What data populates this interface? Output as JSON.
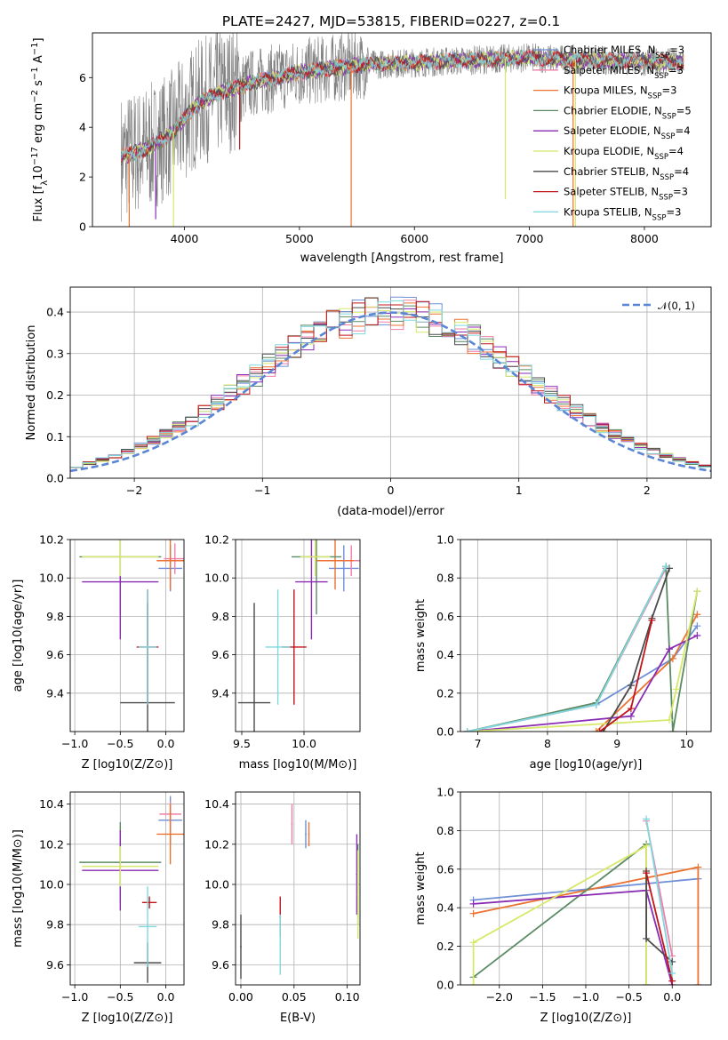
{
  "figure": {
    "title": "PLATE=2427, MJD=53815, FIBERID=0227, z=0.1"
  },
  "colors": {
    "Chabrier MILES": "#6f8fd6",
    "Salpeter MILES": "#f07ea8",
    "Kroupa MILES": "#ec7230",
    "Chabrier ELODIE": "#5c8a64",
    "Salpeter ELODIE": "#8a2bb4",
    "Kroupa ELODIE": "#d7e86a",
    "Chabrier STELIB": "#4a4a4a",
    "Salpeter STELIB": "#c0151a",
    "Kroupa STELIB": "#7fd8df",
    "normal_curve": "#5b86d6",
    "data_spectrum": "#808080",
    "grid": "#b0b0b0"
  },
  "chart_data": [
    {
      "type": "line",
      "name": "spectrum",
      "xlabel": "wavelength [Angstrom, rest frame]",
      "ylabel": "Flux [f_λ10^-17 erg cm^-2 s^-1 A^-1]",
      "xlim": [
        3200,
        8580
      ],
      "ylim": [
        0,
        7.8
      ],
      "xticks": [
        4000,
        5000,
        6000,
        7000,
        8000
      ],
      "yticks": [
        0,
        2,
        4,
        6
      ],
      "grid": false,
      "legend_position": "top-right",
      "spectrum_range": [
        3450,
        8340
      ],
      "continuum_knots": [
        [
          3450,
          2.8
        ],
        [
          3700,
          3.2
        ],
        [
          3900,
          3.8
        ],
        [
          4100,
          4.9
        ],
        [
          4300,
          5.4
        ],
        [
          4600,
          5.8
        ],
        [
          5000,
          6.2
        ],
        [
          5500,
          6.5
        ],
        [
          6000,
          6.6
        ],
        [
          6500,
          6.7
        ],
        [
          7000,
          6.8
        ],
        [
          7500,
          6.7
        ],
        [
          8000,
          6.65
        ],
        [
          8340,
          6.6
        ]
      ],
      "model_dips": [
        {
          "series": "Kroupa MILES",
          "x": 3520,
          "y_min": 0.0
        },
        {
          "series": "Salpeter ELODIE",
          "x": 3750,
          "y_min": 0.3
        },
        {
          "series": "Kroupa ELODIE",
          "x": 3905,
          "y_min": 0.0
        },
        {
          "series": "Salpeter STELIB",
          "x": 4480,
          "y_min": 3.1
        },
        {
          "series": "Kroupa MILES",
          "x": 5450,
          "y_min": 0.0
        },
        {
          "series": "Kroupa ELODIE",
          "x": 6790,
          "y_min": 1.1
        },
        {
          "series": "Kroupa MILES",
          "x": 7380,
          "y_min": 0.0
        },
        {
          "series": "Kroupa ELODIE",
          "x": 7400,
          "y_min": 0.0
        }
      ],
      "series": [
        {
          "name": "Chabrier MILES, N_SSP=3",
          "text": "Chabrier MILES, N",
          "sub": "SSP",
          "tail": "=3"
        },
        {
          "name": "Salpeter MILES, N_SSP=3",
          "text": "Salpeter MILES, N",
          "sub": "SSP",
          "tail": "=3"
        },
        {
          "name": "Kroupa MILES, N_SSP=3",
          "text": "Kroupa MILES, N",
          "sub": "SSP",
          "tail": "=3"
        },
        {
          "name": "Chabrier ELODIE, N_SSP=5",
          "text": "Chabrier ELODIE, N",
          "sub": "SSP",
          "tail": "=5"
        },
        {
          "name": "Salpeter ELODIE, N_SSP=4",
          "text": "Salpeter ELODIE, N",
          "sub": "SSP",
          "tail": "=4"
        },
        {
          "name": "Kroupa ELODIE, N_SSP=4",
          "text": "Kroupa ELODIE, N",
          "sub": "SSP",
          "tail": "=4"
        },
        {
          "name": "Chabrier STELIB, N_SSP=4",
          "text": "Chabrier STELIB, N",
          "sub": "SSP",
          "tail": "=4"
        },
        {
          "name": "Salpeter STELIB, N_SSP=3",
          "text": "Salpeter STELIB, N",
          "sub": "SSP",
          "tail": "=3"
        },
        {
          "name": "Kroupa STELIB, N_SSP=3",
          "text": "Kroupa STELIB, N",
          "sub": "SSP",
          "tail": "=3"
        }
      ]
    },
    {
      "type": "line",
      "name": "residuals",
      "xlabel": "(data-model)/error",
      "ylabel": "Normed distribution",
      "xlim": [
        -2.5,
        2.5
      ],
      "ylim": [
        0,
        0.46
      ],
      "xticks": [
        -2,
        -1,
        0,
        1,
        2
      ],
      "yticks": [
        0.0,
        0.1,
        0.2,
        0.3,
        0.4
      ],
      "grid": true,
      "legend_position": "top-right",
      "legend": "𝒩(0, 1)",
      "normal_curve": {
        "mean": 0,
        "sigma": 1
      },
      "bin_width": 0.1,
      "bin_edges": [
        -2.5,
        2.5
      ]
    },
    {
      "type": "scatter",
      "name": "age-vs-Z",
      "xlabel": "Z [log10(Z/Z⊙)]",
      "ylabel": "age [log10(age/yr)]",
      "xlim": [
        -1.05,
        0.2
      ],
      "ylim": [
        9.2,
        10.2
      ],
      "xticks": [
        -1.0,
        -0.5,
        0.0
      ],
      "yticks": [
        9.4,
        9.6,
        9.8,
        10.0,
        10.2
      ],
      "grid": true,
      "points": [
        {
          "series": "Chabrier MILES",
          "x": 0.05,
          "xerr": 0.13,
          "y": 10.05,
          "yerr": 0.12
        },
        {
          "series": "Salpeter MILES",
          "x": 0.1,
          "xerr": 0.12,
          "y": 10.1,
          "yerr": 0.08
        },
        {
          "series": "Kroupa MILES",
          "x": 0.05,
          "xerr": 0.15,
          "y": 10.09,
          "yerr": 0.15
        },
        {
          "series": "Chabrier ELODIE",
          "x": -0.5,
          "xerr": 0.45,
          "y": 10.11,
          "yerr": 0.3
        },
        {
          "series": "Salpeter ELODIE",
          "x": -0.5,
          "xerr": 0.42,
          "y": 9.98,
          "yerr": 0.3
        },
        {
          "series": "Kroupa ELODIE",
          "x": -0.5,
          "xerr": 0.42,
          "y": 10.11,
          "yerr": 0.1
        },
        {
          "series": "Chabrier STELIB",
          "x": -0.2,
          "xerr": 0.3,
          "y": 9.35,
          "yerr": 0.52
        },
        {
          "series": "Salpeter STELIB",
          "x": -0.2,
          "xerr": 0.12,
          "y": 9.64,
          "yerr": 0.3
        },
        {
          "series": "Kroupa STELIB",
          "x": -0.2,
          "xerr": 0.1,
          "y": 9.64,
          "yerr": 0.3
        }
      ]
    },
    {
      "type": "scatter",
      "name": "age-vs-mass",
      "xlabel": "mass [log10(M/M⊙)]",
      "ylabel": "",
      "xlim": [
        9.45,
        10.45
      ],
      "ylim": [
        9.2,
        10.2
      ],
      "xticks": [
        9.5,
        10.0
      ],
      "yticks": [
        9.4,
        9.6,
        9.8,
        10.0,
        10.2
      ],
      "grid": true,
      "points": [
        {
          "series": "Chabrier MILES",
          "x": 10.32,
          "xerr": 0.12,
          "y": 10.05,
          "yerr": 0.12
        },
        {
          "series": "Salpeter MILES",
          "x": 10.38,
          "xerr": 0.15,
          "y": 10.09,
          "yerr": 0.08
        },
        {
          "series": "Kroupa MILES",
          "x": 10.25,
          "xerr": 0.15,
          "y": 10.09,
          "yerr": 0.15
        },
        {
          "series": "Chabrier ELODIE",
          "x": 10.1,
          "xerr": 0.2,
          "y": 10.11,
          "yerr": 0.3
        },
        {
          "series": "Salpeter ELODIE",
          "x": 10.06,
          "xerr": 0.13,
          "y": 9.98,
          "yerr": 0.3
        },
        {
          "series": "Kroupa ELODIE",
          "x": 10.09,
          "xerr": 0.12,
          "y": 10.11,
          "yerr": 0.1
        },
        {
          "series": "Chabrier STELIB",
          "x": 9.6,
          "xerr": 0.13,
          "y": 9.35,
          "yerr": 0.52
        },
        {
          "series": "Salpeter STELIB",
          "x": 9.92,
          "xerr": 0.1,
          "y": 9.64,
          "yerr": 0.3
        },
        {
          "series": "Kroupa STELIB",
          "x": 9.79,
          "xerr": 0.1,
          "y": 9.64,
          "yerr": 0.3
        }
      ]
    },
    {
      "type": "line",
      "name": "weight-vs-age",
      "xlabel": "age [log10(age/yr)]",
      "ylabel": "mass weight",
      "xlim": [
        6.75,
        10.35
      ],
      "ylim": [
        0,
        1.0
      ],
      "xticks": [
        7,
        8,
        9,
        10
      ],
      "yticks": [
        0.0,
        0.2,
        0.4,
        0.6,
        0.8,
        1.0
      ],
      "grid": true,
      "series": [
        {
          "name": "Chabrier MILES",
          "x": [
            6.85,
            8.7,
            9.8,
            10.15
          ],
          "y": [
            0.0,
            0.14,
            0.38,
            0.55
          ]
        },
        {
          "name": "Salpeter MILES",
          "x": [
            6.85,
            8.7,
            9.7
          ],
          "y": [
            0.0,
            0.14,
            0.85
          ]
        },
        {
          "name": "Kroupa MILES",
          "x": [
            8.7,
            9.8,
            10.15
          ],
          "y": [
            0.0,
            0.38,
            0.61
          ]
        },
        {
          "name": "Chabrier ELODIE",
          "x": [
            6.85,
            8.7,
            9.7,
            9.8,
            10.15
          ],
          "y": [
            0.0,
            0.15,
            0.86,
            0.0,
            0.73
          ]
        },
        {
          "name": "Salpeter ELODIE",
          "x": [
            6.85,
            9.2,
            9.75,
            10.15
          ],
          "y": [
            0.0,
            0.08,
            0.43,
            0.5
          ]
        },
        {
          "name": "Kroupa ELODIE",
          "x": [
            6.85,
            9.75,
            9.85,
            10.15
          ],
          "y": [
            0.0,
            0.06,
            0.22,
            0.73
          ]
        },
        {
          "name": "Chabrier STELIB",
          "x": [
            8.8,
            9.2,
            9.5,
            9.75
          ],
          "y": [
            0.0,
            0.24,
            0.59,
            0.85
          ]
        },
        {
          "name": "Salpeter STELIB",
          "x": [
            8.75,
            9.2,
            9.5
          ],
          "y": [
            0.0,
            0.12,
            0.58
          ]
        },
        {
          "name": "Kroupa STELIB",
          "x": [
            6.85,
            8.7,
            9.7
          ],
          "y": [
            0.0,
            0.14,
            0.86
          ]
        }
      ]
    },
    {
      "type": "scatter",
      "name": "mass-vs-Z",
      "xlabel": "Z [log10(Z/Z⊙)]",
      "ylabel": "mass [log10(M/M⊙)]",
      "xlim": [
        -1.05,
        0.2
      ],
      "ylim": [
        9.5,
        10.46
      ],
      "xticks": [
        -1.0,
        -0.5,
        0.0
      ],
      "yticks": [
        9.6,
        9.8,
        10.0,
        10.2,
        10.4
      ],
      "grid": true,
      "points": [
        {
          "series": "Chabrier MILES",
          "x": 0.05,
          "xerr": 0.13,
          "y": 10.32,
          "yerr": 0.12
        },
        {
          "series": "Salpeter MILES",
          "x": 0.05,
          "xerr": 0.12,
          "y": 10.35,
          "yerr": 0.06
        },
        {
          "series": "Kroupa MILES",
          "x": 0.05,
          "xerr": 0.15,
          "y": 10.25,
          "yerr": 0.15
        },
        {
          "series": "Chabrier ELODIE",
          "x": -0.5,
          "xerr": 0.45,
          "y": 10.11,
          "yerr": 0.2
        },
        {
          "series": "Salpeter ELODIE",
          "x": -0.5,
          "xerr": 0.42,
          "y": 10.07,
          "yerr": 0.2
        },
        {
          "series": "Kroupa ELODIE",
          "x": -0.5,
          "xerr": 0.42,
          "y": 10.09,
          "yerr": 0.1
        },
        {
          "series": "Chabrier STELIB",
          "x": -0.2,
          "xerr": 0.15,
          "y": 9.61,
          "yerr": 0.1
        },
        {
          "series": "Salpeter STELIB",
          "x": -0.18,
          "xerr": 0.08,
          "y": 9.91,
          "yerr": 0.03
        },
        {
          "series": "Kroupa STELIB",
          "x": -0.2,
          "xerr": 0.1,
          "y": 9.79,
          "yerr": 0.2
        }
      ]
    },
    {
      "type": "scatter",
      "name": "mass-vs-ebv",
      "xlabel": "E(B-V)",
      "ylabel": "",
      "xlim": [
        -0.005,
        0.112
      ],
      "ylim": [
        9.5,
        10.46
      ],
      "xticks": [
        0.0,
        0.05,
        0.1
      ],
      "yticks": [
        9.6,
        9.8,
        10.0,
        10.2,
        10.4
      ],
      "grid": true,
      "points": [
        {
          "series": "Chabrier MILES",
          "x": 0.061,
          "y": 10.25,
          "yerr": 0.07
        },
        {
          "series": "Salpeter MILES",
          "x": 0.048,
          "y": 10.3,
          "yerr": 0.1
        },
        {
          "series": "Kroupa MILES",
          "x": 0.064,
          "y": 10.25,
          "yerr": 0.06
        },
        {
          "series": "Chabrier ELODIE",
          "x": 0.11,
          "y": 10.0,
          "yerr": 0.2
        },
        {
          "series": "Salpeter ELODIE",
          "x": 0.109,
          "y": 10.05,
          "yerr": 0.2
        },
        {
          "series": "Kroupa ELODIE",
          "x": 0.11,
          "y": 9.95,
          "yerr": 0.22
        },
        {
          "series": "Chabrier STELIB",
          "x": 0.0,
          "y": 9.69,
          "yerr": 0.16
        },
        {
          "series": "Salpeter STELIB",
          "x": 0.037,
          "y": 9.84,
          "yerr": 0.1
        },
        {
          "series": "Kroupa STELIB",
          "x": 0.037,
          "y": 9.7,
          "yerr": 0.15
        }
      ]
    },
    {
      "type": "line",
      "name": "weight-vs-Z",
      "xlabel": "Z [log10(Z/Z⊙)]",
      "ylabel": "mass weight",
      "xlim": [
        -2.45,
        0.45
      ],
      "ylim": [
        0,
        1.0
      ],
      "xticks": [
        -2.0,
        -1.5,
        -1.0,
        -0.5,
        0.0
      ],
      "yticks": [
        0.0,
        0.2,
        0.4,
        0.6,
        0.8,
        1.0
      ],
      "grid": true,
      "series": [
        {
          "name": "Chabrier MILES",
          "x": [
            -2.3,
            0.3
          ],
          "y": [
            0.44,
            0.55
          ]
        },
        {
          "name": "Salpeter MILES",
          "x": [
            -0.3,
            0.0
          ],
          "y": [
            0.85,
            0.15
          ]
        },
        {
          "name": "Kroupa MILES",
          "x": [
            -2.3,
            0.3,
            0.3
          ],
          "y": [
            0.37,
            0.61,
            0.0
          ]
        },
        {
          "name": "Chabrier ELODIE",
          "x": [
            -2.3,
            -0.3,
            -0.3
          ],
          "y": [
            0.04,
            0.73,
            0.0
          ]
        },
        {
          "name": "Salpeter ELODIE",
          "x": [
            -2.3,
            -0.3,
            0.0
          ],
          "y": [
            0.42,
            0.49,
            0.0
          ]
        },
        {
          "name": "Kroupa ELODIE",
          "x": [
            -2.3,
            -2.3,
            -0.3,
            -0.3
          ],
          "y": [
            0.0,
            0.22,
            0.72,
            0.0
          ]
        },
        {
          "name": "Chabrier STELIB",
          "x": [
            -0.3,
            -0.3,
            0.0
          ],
          "y": [
            0.59,
            0.24,
            0.12
          ]
        },
        {
          "name": "Salpeter STELIB",
          "x": [
            -0.3,
            0.0
          ],
          "y": [
            0.58,
            0.02
          ]
        },
        {
          "name": "Kroupa STELIB",
          "x": [
            -0.3,
            0.0
          ],
          "y": [
            0.86,
            0.06
          ]
        }
      ]
    }
  ]
}
